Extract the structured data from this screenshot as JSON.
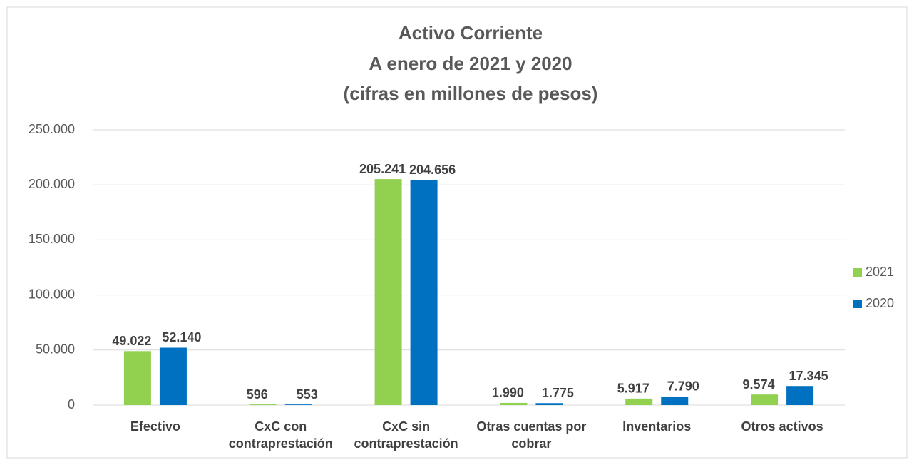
{
  "chart_data": {
    "type": "bar",
    "title": [
      "Activo Corriente",
      "A enero de 2021 y 2020",
      "(cifras en millones de pesos)"
    ],
    "categories": [
      "Efectivo",
      "CxC con contraprestación",
      "CxC sin contraprestación",
      "Otras cuentas por cobrar",
      "Inventarios",
      "Otros activos"
    ],
    "series": [
      {
        "name": "2021",
        "color": "#92d050",
        "values": [
          49022,
          596,
          205241,
          1990,
          5917,
          9574
        ],
        "value_labels": [
          "49.022",
          "596",
          "205.241",
          "1.990",
          "5.917",
          "9.574"
        ]
      },
      {
        "name": "2020",
        "color": "#0070c0",
        "values": [
          52140,
          553,
          204656,
          1775,
          7790,
          17345
        ],
        "value_labels": [
          "52.140",
          "553",
          "204.656",
          "1.775",
          "7.790",
          "17.345"
        ]
      }
    ],
    "ylim": [
      0,
      250000
    ],
    "yticks": [
      0,
      {
        "value": 50000,
        "label": "50.000"
      },
      {
        "value": 100000,
        "label": "100.000"
      },
      {
        "value": 150000,
        "label": "150.000"
      },
      {
        "value": 200000,
        "label": "200.000"
      },
      {
        "value": 250000,
        "label": "250.000"
      }
    ],
    "grid": true,
    "legend": "right"
  }
}
